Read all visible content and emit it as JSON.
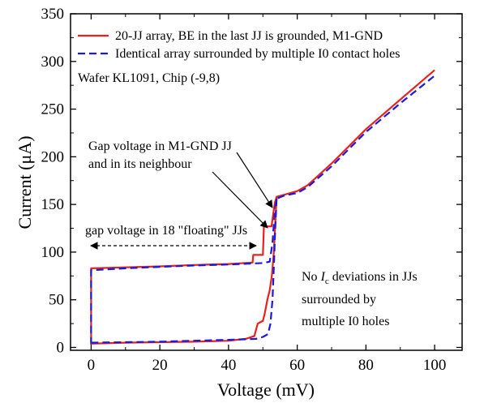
{
  "chart_data": {
    "type": "line",
    "xlabel": "Voltage (mV)",
    "ylabel": "Current (μA)",
    "xlim": [
      -6,
      108
    ],
    "ylim": [
      -3,
      350
    ],
    "xticks": [
      0,
      20,
      40,
      60,
      80,
      100
    ],
    "yticks": [
      0,
      50,
      100,
      150,
      200,
      250,
      300,
      350
    ],
    "grid": false,
    "legend_placement": "top-left",
    "series": [
      {
        "name": "20-JJ array, BE in the last JJ is grounded, M1-GND",
        "color": "#e8211f",
        "dash": "solid",
        "points": [
          [
            0,
            5
          ],
          [
            0,
            83
          ],
          [
            10,
            84
          ],
          [
            20,
            85
          ],
          [
            30,
            86.5
          ],
          [
            40,
            87.5
          ],
          [
            47,
            89
          ],
          [
            47.2,
            97
          ],
          [
            50,
            97
          ],
          [
            50.3,
            127
          ],
          [
            52.5,
            127
          ],
          [
            53,
            140
          ],
          [
            53.5,
            152
          ],
          [
            54,
            158
          ],
          [
            56,
            160
          ],
          [
            60,
            164
          ],
          [
            63,
            170
          ],
          [
            70,
            193
          ],
          [
            80,
            229
          ],
          [
            90,
            260
          ],
          [
            100,
            291
          ]
        ]
      },
      {
        "name": "Identical array surrounded by multiple I0 contact holes",
        "color": "#1a1adb",
        "dash": "dashed",
        "points": [
          [
            0,
            3
          ],
          [
            0,
            81
          ],
          [
            10,
            83
          ],
          [
            20,
            84.5
          ],
          [
            30,
            86
          ],
          [
            40,
            87
          ],
          [
            50,
            88.5
          ],
          [
            52,
            90
          ],
          [
            52.8,
            110
          ],
          [
            53.2,
            130
          ],
          [
            53.6,
            148
          ],
          [
            54,
            156
          ],
          [
            56,
            159
          ],
          [
            60,
            162
          ],
          [
            63,
            168
          ],
          [
            70,
            190
          ],
          [
            80,
            226
          ],
          [
            90,
            256
          ],
          [
            100,
            285
          ]
        ]
      },
      {
        "name": "",
        "color": "#e8211f",
        "dash": "solid",
        "points": [
          [
            0,
            4
          ],
          [
            10,
            5
          ],
          [
            20,
            5.5
          ],
          [
            30,
            6
          ],
          [
            40,
            7
          ],
          [
            45,
            9
          ],
          [
            47.5,
            12
          ],
          [
            48.5,
            25
          ],
          [
            50,
            28
          ],
          [
            50.5,
            35
          ],
          [
            51.3,
            50
          ],
          [
            52,
            60
          ],
          [
            52.6,
            75
          ],
          [
            53.2,
            100
          ],
          [
            53.6,
            130
          ],
          [
            54,
            158
          ]
        ]
      },
      {
        "name": "",
        "color": "#1a1adb",
        "dash": "dashed",
        "points": [
          [
            0,
            5
          ],
          [
            10,
            5.5
          ],
          [
            20,
            6
          ],
          [
            30,
            7
          ],
          [
            40,
            8
          ],
          [
            48,
            9
          ],
          [
            50,
            11
          ],
          [
            51.5,
            14
          ],
          [
            52.2,
            25
          ],
          [
            52.8,
            50
          ],
          [
            53.2,
            85
          ],
          [
            53.6,
            125
          ],
          [
            54,
            156
          ]
        ]
      }
    ],
    "legend": {
      "entries": [
        {
          "label": "20-JJ array, BE in the last JJ is grounded, M1-GND",
          "color": "#e8211f",
          "dash": "solid"
        },
        {
          "label": "Identical array surrounded by multiple I0 contact holes",
          "color": "#1a1adb",
          "dash": "dashed"
        }
      ],
      "note": "Wafer KL1091, Chip (-9,8)"
    },
    "annotations": {
      "gap_jj_line1": "Gap voltage in M1-GND JJ",
      "gap_jj_line2": "and in its neighbour",
      "gap_floating": "gap voltage in 18 \"floating\" JJs",
      "noic_part1": "No ",
      "noic_italic": "I",
      "noic_sub": "c",
      "noic_part2": " deviations in JJs",
      "noic_line2": "surrounded by",
      "noic_line3": "multiple I0 holes"
    }
  }
}
